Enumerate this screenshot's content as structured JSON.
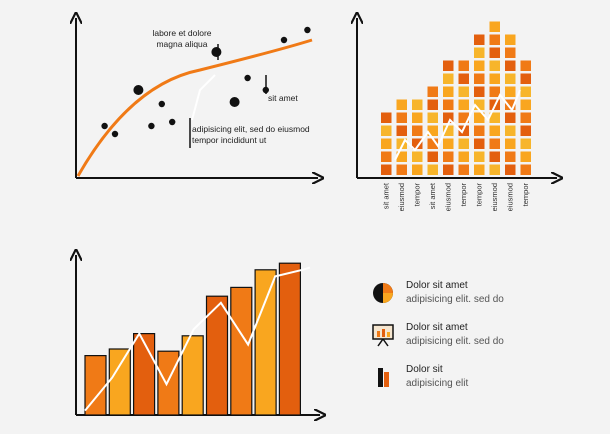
{
  "colors": {
    "axis": "#111111",
    "orange": "#f07a16",
    "dark_orange": "#e35f0e",
    "light_orange": "#f9a61f",
    "amber": "#f7b52b",
    "trend_white": "#ffffff",
    "dot": "#111111"
  },
  "chart_data": [
    {
      "type": "scatter",
      "x": [
        1.1,
        1.5,
        2.4,
        2.9,
        3.3,
        3.7,
        5.4,
        6.1,
        6.6,
        7.3,
        8.0,
        8.9
      ],
      "y": [
        2.6,
        2.2,
        4.4,
        2.6,
        3.7,
        2.8,
        6.3,
        3.8,
        5.0,
        4.4,
        6.9,
        7.4
      ],
      "trend": "concave curve",
      "annotations": [
        {
          "text_lines": [
            "labore et dolore",
            "magna aliqua"
          ],
          "x": 6.6,
          "y": 5.0
        },
        {
          "text_lines": [
            "sit amet"
          ],
          "x": 8.0,
          "y": 5.4
        },
        {
          "text_lines": [
            "adipisicing elit, sed do eiusmod",
            "tempor incididunt ut"
          ],
          "x": 4.8,
          "y": 3.0
        }
      ]
    },
    {
      "type": "bar",
      "categories": [
        "sit amet",
        "eiusmod",
        "tempor",
        "sit amet",
        "eiusmod",
        "tempor",
        "tempor",
        "eiusmod",
        "eiusmod",
        "tempor"
      ],
      "values": [
        5,
        6,
        6,
        7,
        9,
        9,
        11,
        12,
        11,
        9
      ]
    },
    {
      "type": "bar",
      "values": [
        27,
        30,
        37,
        29,
        36,
        54,
        58,
        66,
        69
      ],
      "line_values": [
        2,
        17,
        37,
        14,
        39,
        51,
        32,
        63,
        66
      ]
    }
  ],
  "legend": [
    {
      "icon": "pie-chart-icon",
      "title": "Dolor sit amet",
      "subtitle": "adipisicing elit. sed do"
    },
    {
      "icon": "presentation-board-icon",
      "title": "Dolor sit amet",
      "subtitle": "adipisicing elit. sed do"
    },
    {
      "icon": "bar-chart-icon",
      "title": "Dolor sit",
      "subtitle": "adipisicing elit"
    }
  ]
}
